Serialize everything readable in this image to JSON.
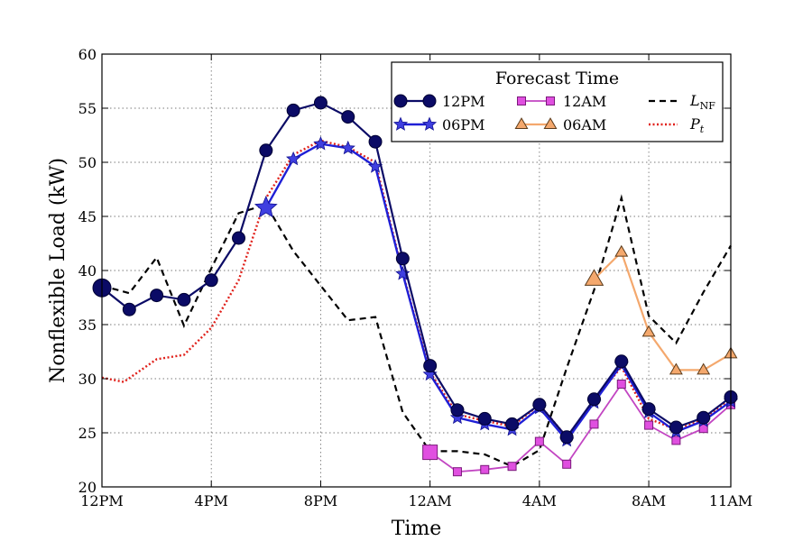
{
  "colors": {
    "s12pm": "#0b0b66",
    "s06pm": "#1f1fd6",
    "s06pm_marker": "#3f3fe0",
    "s12am_line": "#c245c2",
    "s12am_marker": "#e04fe0",
    "s06am_line": "#f4a86d",
    "s06am_marker": "#f4a86d",
    "lnf": "#000000",
    "pt": "#e0201a",
    "grid": "#7a7a7a"
  },
  "chart_data": {
    "type": "line",
    "xlabel": "Time",
    "ylabel": "Nonflexible Load (kW)",
    "xlim": [
      0,
      23
    ],
    "ylim": [
      20,
      60
    ],
    "x_ticks": [
      {
        "x": 0,
        "label": "12PM"
      },
      {
        "x": 4,
        "label": "4PM"
      },
      {
        "x": 8,
        "label": "8PM"
      },
      {
        "x": 12,
        "label": "12AM"
      },
      {
        "x": 16,
        "label": "4AM"
      },
      {
        "x": 20,
        "label": "8AM"
      },
      {
        "x": 23,
        "label": "11AM"
      }
    ],
    "y_ticks": [
      20,
      25,
      30,
      35,
      40,
      45,
      50,
      55,
      60
    ],
    "grid": true,
    "legend": {
      "title": "Forecast Time",
      "location": "top-right",
      "labels": {
        "s12pm": "12PM",
        "s06pm": "06PM",
        "s12am": "12AM",
        "s06am": "06AM",
        "lnf_main": "L",
        "lnf_sub": "NF",
        "pt_main": "P",
        "pt_sub": "t"
      }
    },
    "series": [
      {
        "key": "s12pm",
        "name": "12PM",
        "marker": "circle",
        "x": [
          0,
          1,
          2,
          3,
          4,
          5,
          6,
          7,
          8,
          9,
          10,
          11,
          12,
          13,
          14,
          15,
          16,
          17,
          18,
          19,
          20,
          21,
          22,
          23
        ],
        "values": [
          38.4,
          36.4,
          37.7,
          37.3,
          39.1,
          43.0,
          51.1,
          54.8,
          55.5,
          54.2,
          51.9,
          41.1,
          31.2,
          27.1,
          26.3,
          25.8,
          27.6,
          24.6,
          28.1,
          31.6,
          27.2,
          25.5,
          26.4,
          28.3
        ]
      },
      {
        "key": "s06pm",
        "name": "06PM",
        "marker": "star",
        "x": [
          6,
          7,
          8,
          9,
          10,
          11,
          12,
          13,
          14,
          15,
          16,
          17,
          18,
          19,
          20,
          21,
          22,
          23
        ],
        "values": [
          45.8,
          50.3,
          51.7,
          51.3,
          49.6,
          39.7,
          30.4,
          26.4,
          25.8,
          25.3,
          27.3,
          24.3,
          27.8,
          31.3,
          26.9,
          25.1,
          26.1,
          27.9
        ]
      },
      {
        "key": "s12am",
        "name": "12AM",
        "marker": "square",
        "x": [
          12,
          13,
          14,
          15,
          16,
          17,
          18,
          19,
          20,
          21,
          22,
          23
        ],
        "values": [
          23.2,
          21.4,
          21.6,
          21.9,
          24.2,
          22.1,
          25.8,
          29.5,
          25.7,
          24.3,
          25.4,
          27.6
        ]
      },
      {
        "key": "s06am",
        "name": "06AM",
        "marker": "triangle",
        "x": [
          18,
          19,
          20,
          21,
          22,
          23
        ],
        "values": [
          39.2,
          41.7,
          34.3,
          30.8,
          30.8,
          32.3
        ]
      },
      {
        "key": "lnf",
        "name": "L_NF",
        "marker": "none",
        "style": "dashed",
        "x": [
          0,
          1,
          2,
          3,
          4,
          5,
          6,
          7,
          8,
          9,
          10,
          11,
          12,
          13,
          14,
          15,
          16,
          17,
          18,
          19,
          20,
          21,
          22,
          23
        ],
        "values": [
          38.6,
          37.9,
          41.2,
          34.9,
          40.2,
          45.3,
          46.1,
          41.8,
          38.6,
          35.4,
          35.7,
          26.9,
          23.3,
          23.3,
          23.0,
          21.9,
          23.4,
          31.0,
          38.2,
          46.7,
          35.8,
          33.3,
          38.0,
          42.3
        ]
      },
      {
        "key": "pt",
        "name": "P_t",
        "marker": "none",
        "style": "dotted",
        "x": [
          0,
          0.8,
          2,
          3,
          4,
          5,
          6,
          7,
          8,
          9,
          10,
          11,
          12,
          13,
          14,
          15,
          16,
          17,
          18,
          19,
          20,
          21,
          22,
          23
        ],
        "values": [
          30.1,
          29.7,
          31.8,
          32.2,
          34.7,
          39.1,
          46.7,
          50.7,
          52.0,
          51.4,
          50.0,
          39.8,
          30.6,
          26.7,
          26.1,
          25.6,
          27.6,
          24.6,
          28.0,
          31.1,
          26.3,
          25.3,
          26.2,
          28.2
        ]
      }
    ]
  }
}
